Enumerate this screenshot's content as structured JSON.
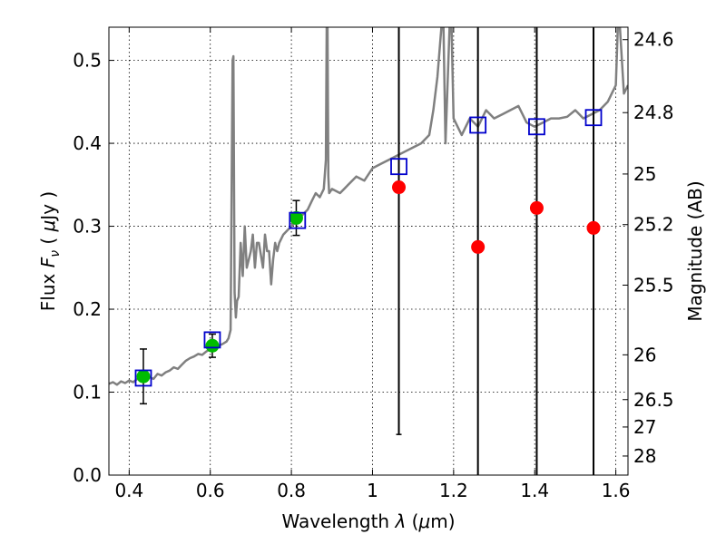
{
  "chart_data": {
    "type": "scatter",
    "xlabel": "Wavelength  λ (μm)",
    "ylabel": "Flux  F_ν  ( μJy )",
    "ylabel_parts": {
      "pre": "Flux  ",
      "F": "F",
      "nu": "ν",
      "open": "  ( ",
      "mu": "μ",
      "post": "Jy )"
    },
    "xlabel_parts": {
      "pre": "Wavelength  ",
      "lambda": "λ",
      "open": " (",
      "mu": "μ",
      "post": "m)"
    },
    "ylabel_right": "Magnitude (AB)",
    "xlim": [
      0.35,
      1.63
    ],
    "ylim": [
      0.0,
      0.54
    ],
    "x_ticks": [
      0.4,
      0.6,
      0.8,
      1.0,
      1.2,
      1.4,
      1.6
    ],
    "x_tick_labels": [
      "0.4",
      "0.6",
      "0.8",
      "1",
      "1.2",
      "1.4",
      "1.6"
    ],
    "y_ticks": [
      0.0,
      0.1,
      0.2,
      0.3,
      0.4,
      0.5
    ],
    "y_tick_labels": [
      "0.0",
      "0.1",
      "0.2",
      "0.3",
      "0.4",
      "0.5"
    ],
    "right_ticks": [
      {
        "label": "24.6",
        "flux": 0.525
      },
      {
        "label": "24.8",
        "flux": 0.437
      },
      {
        "label": "25",
        "flux": 0.363
      },
      {
        "label": "25.2",
        "flux": 0.302
      },
      {
        "label": "25.5",
        "flux": 0.229
      },
      {
        "label": "26",
        "flux": 0.145
      },
      {
        "label": "26.5",
        "flux": 0.091
      },
      {
        "label": "27",
        "flux": 0.058
      },
      {
        "label": "28",
        "flux": 0.023
      }
    ],
    "grid": true,
    "colors": {
      "spectrum": "#808080",
      "detections": "#00bb00",
      "upper_limits": "#ff0000",
      "model": "#0000cc",
      "errorbar": "#000000",
      "grid": "#000000"
    },
    "spectrum": {
      "x": [
        0.35,
        0.36,
        0.37,
        0.38,
        0.39,
        0.4,
        0.41,
        0.42,
        0.43,
        0.44,
        0.45,
        0.46,
        0.47,
        0.48,
        0.49,
        0.5,
        0.51,
        0.52,
        0.53,
        0.54,
        0.55,
        0.56,
        0.57,
        0.58,
        0.59,
        0.6,
        0.61,
        0.62,
        0.63,
        0.64,
        0.645,
        0.65,
        0.655,
        0.657,
        0.66,
        0.663,
        0.666,
        0.67,
        0.675,
        0.68,
        0.685,
        0.69,
        0.7,
        0.705,
        0.71,
        0.715,
        0.72,
        0.73,
        0.735,
        0.74,
        0.745,
        0.75,
        0.755,
        0.76,
        0.765,
        0.77,
        0.78,
        0.79,
        0.8,
        0.81,
        0.82,
        0.83,
        0.84,
        0.85,
        0.86,
        0.87,
        0.88,
        0.885,
        0.887,
        0.889,
        0.891,
        0.893,
        0.9,
        0.92,
        0.94,
        0.96,
        0.98,
        1.0,
        1.02,
        1.04,
        1.06,
        1.08,
        1.1,
        1.12,
        1.14,
        1.15,
        1.16,
        1.17,
        1.175,
        1.18,
        1.19,
        1.195,
        1.2,
        1.21,
        1.22,
        1.24,
        1.26,
        1.28,
        1.3,
        1.32,
        1.34,
        1.36,
        1.38,
        1.4,
        1.42,
        1.44,
        1.46,
        1.48,
        1.5,
        1.52,
        1.54,
        1.56,
        1.58,
        1.59,
        1.6,
        1.605,
        1.61,
        1.62,
        1.63
      ],
      "y": [
        0.11,
        0.112,
        0.109,
        0.113,
        0.111,
        0.114,
        0.112,
        0.116,
        0.114,
        0.117,
        0.118,
        0.116,
        0.122,
        0.12,
        0.124,
        0.126,
        0.13,
        0.128,
        0.133,
        0.138,
        0.141,
        0.143,
        0.146,
        0.145,
        0.149,
        0.152,
        0.154,
        0.156,
        0.158,
        0.161,
        0.165,
        0.175,
        0.5,
        0.505,
        0.22,
        0.19,
        0.21,
        0.215,
        0.28,
        0.24,
        0.3,
        0.25,
        0.27,
        0.29,
        0.25,
        0.28,
        0.28,
        0.25,
        0.29,
        0.27,
        0.27,
        0.23,
        0.26,
        0.28,
        0.27,
        0.28,
        0.29,
        0.295,
        0.3,
        0.305,
        0.31,
        0.315,
        0.32,
        0.33,
        0.34,
        0.335,
        0.345,
        0.38,
        0.54,
        0.54,
        0.36,
        0.34,
        0.345,
        0.34,
        0.35,
        0.36,
        0.355,
        0.37,
        0.375,
        0.38,
        0.385,
        0.39,
        0.395,
        0.4,
        0.41,
        0.44,
        0.48,
        0.54,
        0.54,
        0.4,
        0.54,
        0.54,
        0.43,
        0.42,
        0.41,
        0.43,
        0.42,
        0.44,
        0.43,
        0.435,
        0.44,
        0.445,
        0.425,
        0.42,
        0.425,
        0.43,
        0.43,
        0.432,
        0.44,
        0.43,
        0.435,
        0.44,
        0.45,
        0.46,
        0.47,
        0.54,
        0.54,
        0.46,
        0.47
      ]
    },
    "detections": [
      {
        "x": 0.435,
        "y": 0.119,
        "err": 0.033
      },
      {
        "x": 0.605,
        "y": 0.156,
        "err": 0.014
      },
      {
        "x": 0.812,
        "y": 0.31,
        "err": 0.021
      }
    ],
    "upper_limits": [
      {
        "x": 1.065,
        "y": 0.347
      },
      {
        "x": 1.26,
        "y": 0.275
      },
      {
        "x": 1.405,
        "y": 0.322
      },
      {
        "x": 1.545,
        "y": 0.298
      }
    ],
    "nir_errorbars": [
      {
        "x": 1.065,
        "low": 0.049,
        "high": 0.54
      },
      {
        "x": 1.26,
        "low": 0.0,
        "high": 0.54
      },
      {
        "x": 1.405,
        "low": 0.0,
        "high": 0.54
      },
      {
        "x": 1.545,
        "low": 0.0,
        "high": 0.54
      }
    ],
    "model_photometry": [
      {
        "x": 0.435,
        "y": 0.117
      },
      {
        "x": 0.605,
        "y": 0.163
      },
      {
        "x": 0.815,
        "y": 0.307
      },
      {
        "x": 1.065,
        "y": 0.372
      },
      {
        "x": 1.26,
        "y": 0.422
      },
      {
        "x": 1.405,
        "y": 0.42
      },
      {
        "x": 1.545,
        "y": 0.431
      }
    ]
  }
}
